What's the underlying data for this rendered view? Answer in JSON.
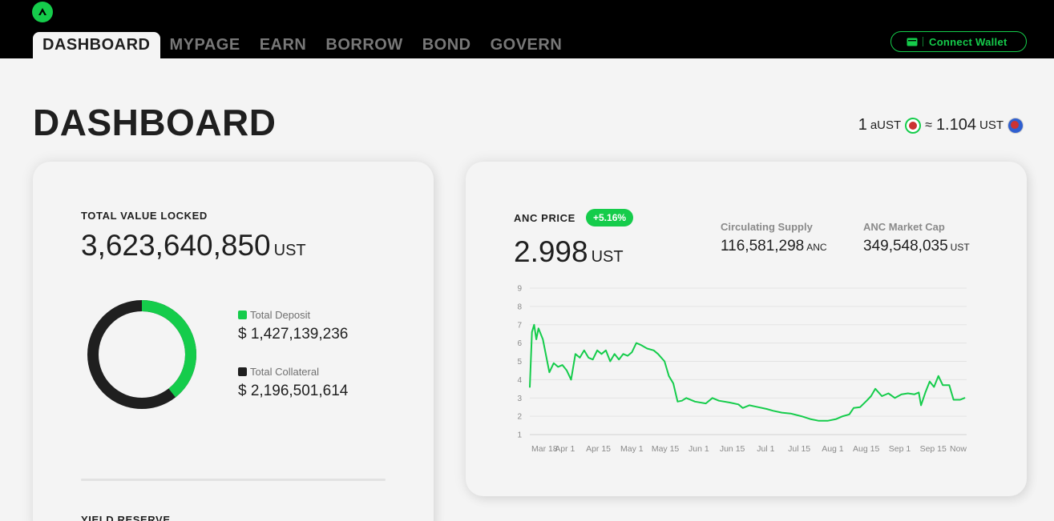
{
  "header": {
    "nav": [
      "DASHBOARD",
      "MYPAGE",
      "EARN",
      "BORROW",
      "BOND",
      "GOVERN"
    ],
    "active_nav": "DASHBOARD",
    "connect_wallet": "Connect Wallet"
  },
  "page": {
    "title": "DASHBOARD",
    "rate": {
      "lhs_amount": "1",
      "lhs_unit": "aUST",
      "approx": "≈",
      "rhs_amount": "1.104",
      "rhs_unit": "UST"
    }
  },
  "tvl_card": {
    "label": "TOTAL VALUE LOCKED",
    "value": "3,623,640,850",
    "unit": "UST",
    "deposit_label": "Total Deposit",
    "deposit_value": "$ 1,427,139,236",
    "collateral_label": "Total Collateral",
    "collateral_value": "$ 2,196,501,614",
    "deposit_share": 0.3938,
    "yield_label": "YIELD RESERVE"
  },
  "anc_card": {
    "label": "ANC PRICE",
    "change": "+5.16%",
    "price": "2.998",
    "unit": "UST",
    "supply_label": "Circulating Supply",
    "supply_value": "116,581,298",
    "supply_unit": "ANC",
    "mcap_label": "ANC Market Cap",
    "mcap_value": "349,548,035",
    "mcap_unit": "UST"
  },
  "colors": {
    "accent": "#15cc4b",
    "dark": "#1f1f1f",
    "background": "#f4f4f4"
  },
  "chart_data": {
    "type": "line",
    "y_ticks": [
      "1",
      "2",
      "3",
      "4",
      "5",
      "6",
      "7",
      "8",
      "9"
    ],
    "ylim": [
      1,
      9
    ],
    "x_ticks": [
      "Mar 18",
      "Apr 1",
      "Apr 15",
      "May 1",
      "May 15",
      "Jun 1",
      "Jun 15",
      "Jul 1",
      "Jul 15",
      "Aug 1",
      "Aug 15",
      "Sep 1",
      "Sep 15",
      "Now"
    ],
    "xlim": [
      "2021-03-17",
      "2021-10-04"
    ],
    "grid": true,
    "series": [
      {
        "color": "#15cc4b",
        "points": [
          [
            "2021-03-17",
            3.6
          ],
          [
            "2021-03-18",
            6.6
          ],
          [
            "2021-03-19",
            7.0
          ],
          [
            "2021-03-20",
            6.2
          ],
          [
            "2021-03-21",
            6.8
          ],
          [
            "2021-03-23",
            6.2
          ],
          [
            "2021-03-25",
            5.0
          ],
          [
            "2021-03-26",
            4.4
          ],
          [
            "2021-03-28",
            4.9
          ],
          [
            "2021-03-30",
            4.7
          ],
          [
            "2021-04-01",
            4.8
          ],
          [
            "2021-04-03",
            4.5
          ],
          [
            "2021-04-05",
            4.0
          ],
          [
            "2021-04-07",
            5.4
          ],
          [
            "2021-04-09",
            5.2
          ],
          [
            "2021-04-11",
            5.6
          ],
          [
            "2021-04-13",
            5.2
          ],
          [
            "2021-04-15",
            5.1
          ],
          [
            "2021-04-17",
            5.6
          ],
          [
            "2021-04-19",
            5.4
          ],
          [
            "2021-04-21",
            5.6
          ],
          [
            "2021-04-23",
            5.0
          ],
          [
            "2021-04-25",
            5.4
          ],
          [
            "2021-04-27",
            5.1
          ],
          [
            "2021-04-29",
            5.4
          ],
          [
            "2021-05-01",
            5.3
          ],
          [
            "2021-05-03",
            5.5
          ],
          [
            "2021-05-05",
            6.0
          ],
          [
            "2021-05-07",
            5.9
          ],
          [
            "2021-05-10",
            5.7
          ],
          [
            "2021-05-13",
            5.6
          ],
          [
            "2021-05-15",
            5.4
          ],
          [
            "2021-05-18",
            5.0
          ],
          [
            "2021-05-20",
            4.2
          ],
          [
            "2021-05-22",
            3.8
          ],
          [
            "2021-05-24",
            2.8
          ],
          [
            "2021-05-26",
            2.85
          ],
          [
            "2021-05-28",
            3.0
          ],
          [
            "2021-06-01",
            2.8
          ],
          [
            "2021-06-06",
            2.7
          ],
          [
            "2021-06-09",
            3.0
          ],
          [
            "2021-06-12",
            2.85
          ],
          [
            "2021-06-17",
            2.75
          ],
          [
            "2021-06-21",
            2.65
          ],
          [
            "2021-06-23",
            2.45
          ],
          [
            "2021-06-26",
            2.6
          ],
          [
            "2021-06-30",
            2.5
          ],
          [
            "2021-07-04",
            2.4
          ],
          [
            "2021-07-07",
            2.3
          ],
          [
            "2021-07-11",
            2.2
          ],
          [
            "2021-07-15",
            2.15
          ],
          [
            "2021-07-20",
            2.0
          ],
          [
            "2021-07-24",
            1.85
          ],
          [
            "2021-07-28",
            1.75
          ],
          [
            "2021-08-01",
            1.75
          ],
          [
            "2021-08-05",
            1.85
          ],
          [
            "2021-08-08",
            2.0
          ],
          [
            "2021-08-11",
            2.1
          ],
          [
            "2021-08-13",
            2.45
          ],
          [
            "2021-08-16",
            2.5
          ],
          [
            "2021-08-19",
            2.85
          ],
          [
            "2021-08-21",
            3.1
          ],
          [
            "2021-08-23",
            3.5
          ],
          [
            "2021-08-26",
            3.1
          ],
          [
            "2021-08-29",
            3.25
          ],
          [
            "2021-09-01",
            3.0
          ],
          [
            "2021-09-04",
            3.2
          ],
          [
            "2021-09-07",
            3.25
          ],
          [
            "2021-09-10",
            3.2
          ],
          [
            "2021-09-12",
            3.3
          ],
          [
            "2021-09-13",
            2.6
          ],
          [
            "2021-09-15",
            3.3
          ],
          [
            "2021-09-17",
            3.9
          ],
          [
            "2021-09-19",
            3.6
          ],
          [
            "2021-09-21",
            4.2
          ],
          [
            "2021-09-23",
            3.7
          ],
          [
            "2021-09-26",
            3.7
          ],
          [
            "2021-09-28",
            2.9
          ],
          [
            "2021-10-01",
            2.9
          ],
          [
            "2021-10-03",
            3.0
          ]
        ]
      }
    ]
  }
}
